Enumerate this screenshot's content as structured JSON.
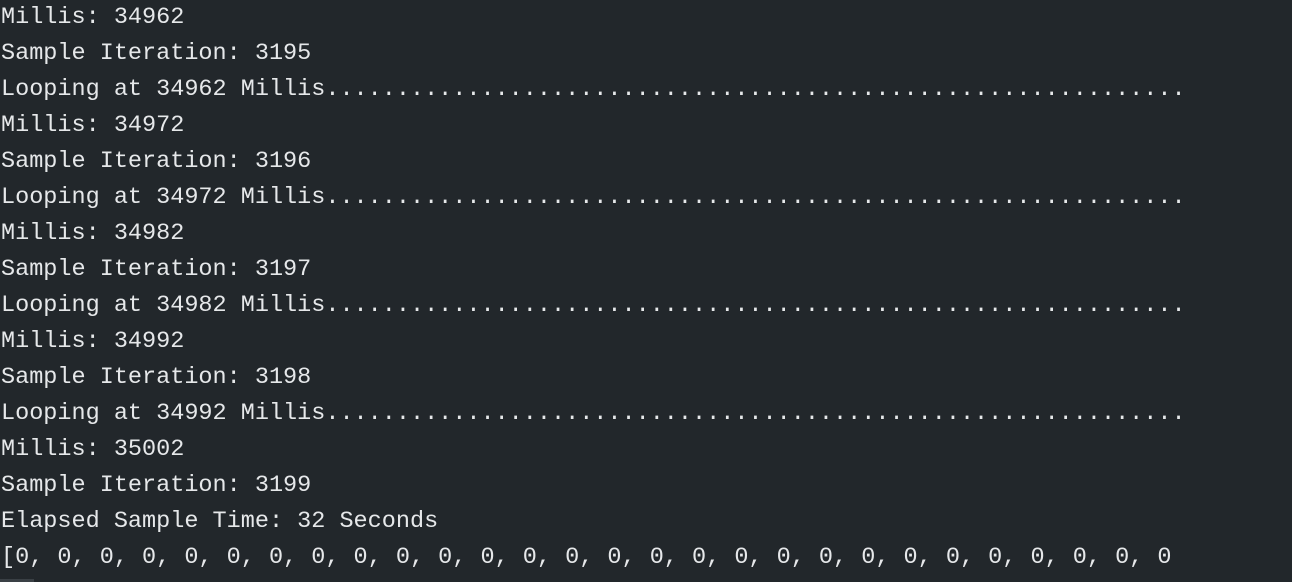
{
  "console": {
    "lines": [
      "Millis: 34962",
      "Sample Iteration: 3195",
      "Looping at 34962 Millis.............................................................",
      "Millis: 34972",
      "Sample Iteration: 3196",
      "Looping at 34972 Millis.............................................................",
      "Millis: 34982",
      "Sample Iteration: 3197",
      "Looping at 34982 Millis.............................................................",
      "Millis: 34992",
      "Sample Iteration: 3198",
      "Looping at 34992 Millis.............................................................",
      "Millis: 35002",
      "Sample Iteration: 3199",
      "Elapsed Sample Time: 32 Seconds",
      "[0, 0, 0, 0, 0, 0, 0, 0, 0, 0, 0, 0, 0, 0, 0, 0, 0, 0, 0, 0, 0, 0, 0, 0, 0, 0, 0, 0"
    ]
  },
  "colors": {
    "background": "#22272b",
    "text": "#e6e8ea"
  }
}
